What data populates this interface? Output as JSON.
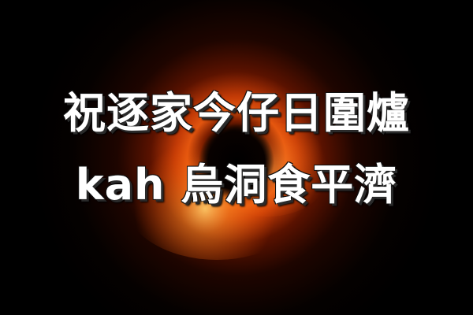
{
  "caption": {
    "line1": "祝逐家今仔日圍爐",
    "line2": "kah 烏洞食平濟"
  },
  "colors": {
    "background": "#000000",
    "ring_inner": "#ffb14a",
    "ring_mid": "#d9480c",
    "ring_outer": "#5a1200",
    "text": "#ffffff"
  },
  "image": {
    "subject": "black-hole-icon"
  }
}
